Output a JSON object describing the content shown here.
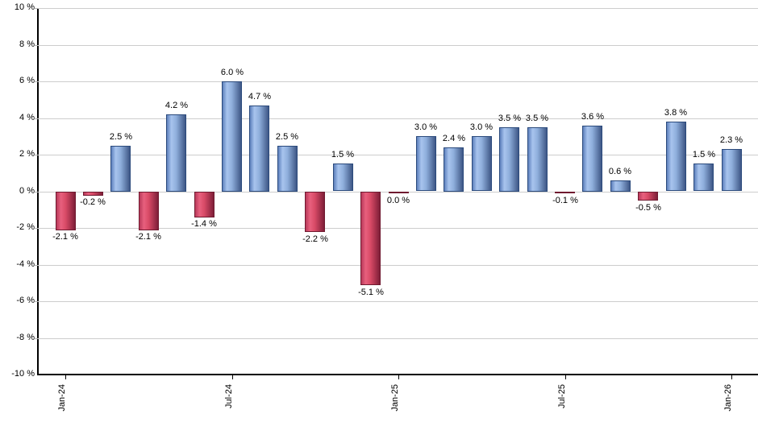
{
  "chart_data": {
    "type": "bar",
    "title": "",
    "xlabel": "",
    "ylabel": "",
    "ylim": [
      -10,
      10
    ],
    "y_tick_step": 2,
    "grid": "horizontal",
    "legend": null,
    "y_tick_labels": [
      "10 %",
      "8 %",
      "6 %",
      "4 %",
      "2 %",
      "0 %",
      "-2 %",
      "-4 %",
      "-6 %",
      "-8 %",
      "-10 %"
    ],
    "x_ticks": [
      {
        "index": 0,
        "label": "Jan-24"
      },
      {
        "index": 6,
        "label": "Jul-24"
      },
      {
        "index": 12,
        "label": "Jan-25"
      },
      {
        "index": 18,
        "label": "Jul-25"
      },
      {
        "index": 24,
        "label": "Jan-26"
      }
    ],
    "values": [
      -2.1,
      -0.2,
      2.5,
      -2.1,
      4.2,
      -1.4,
      6.0,
      4.7,
      2.5,
      -2.2,
      1.5,
      -5.1,
      0.0,
      3.0,
      2.4,
      3.0,
      3.5,
      3.5,
      -0.1,
      3.6,
      0.6,
      -0.5,
      3.8,
      1.5,
      2.3
    ],
    "bar_labels": [
      "-2.1 %",
      "-0.2 %",
      "2.5 %",
      "-2.1 %",
      "4.2 %",
      "-1.4 %",
      "6.0 %",
      "4.7 %",
      "2.5 %",
      "-2.2 %",
      "1.5 %",
      "-5.1 %",
      "0.0 %",
      "3.0 %",
      "2.4 %",
      "3.0 %",
      "3.5 %",
      "3.5 %",
      "-0.1 %",
      "3.6 %",
      "0.6 %",
      "-0.5 %",
      "3.8 %",
      "1.5 %",
      "2.3 %"
    ],
    "colors": {
      "positive": {
        "edge": "#5d80bc",
        "light": "#a8c4ee",
        "mid": "#8fafdc",
        "dark": "#3e5786",
        "border": "#2b4a7c"
      },
      "negative": {
        "edge": "#b8395a",
        "light": "#e8607e",
        "mid": "#d84a66",
        "dark": "#7e1e38",
        "border": "#701a30"
      },
      "gridline": "#cdcdcd",
      "axis": "#000000",
      "label_text": "#000000",
      "background": "#ffffff"
    }
  }
}
